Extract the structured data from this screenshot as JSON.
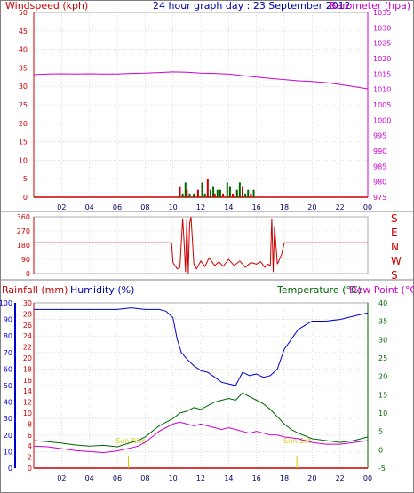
{
  "header": {
    "left": "Windspeed (kph)",
    "center": "24 hour graph day : 23 September 2012",
    "right": "Barometer (hpa)"
  },
  "lower_header": {
    "rainfall": "Rainfall (mm)",
    "humidity": "Humidity (%)",
    "temperature": "Temperature (°C)",
    "dewpoint": "Dew Point (°C)"
  },
  "annotations": {
    "sun_rise": "Sun Rise",
    "sun_set": "Sun Set"
  },
  "colors": {
    "windspeed": "#cc0000",
    "barometer": "#cc00cc",
    "direction": "#cc0000",
    "rainfall": "#cc0000",
    "humidity": "#0000cc",
    "temperature": "#006600",
    "dewpoint": "#cc00cc",
    "gust": "#006600",
    "sun": "#cccc00"
  },
  "chart_data": [
    {
      "type": "line",
      "title": "24 hour graph day : 23 September 2012",
      "ylabel": "Windspeed (kph)",
      "y2label": "Barometer (hpa)",
      "x_ticks": [
        "02",
        "04",
        "06",
        "08",
        "10",
        "12",
        "14",
        "16",
        "18",
        "20",
        "22",
        "00"
      ],
      "x_range": [
        0,
        24
      ],
      "ylim": [
        0,
        50
      ],
      "y_ticks": [
        0,
        5,
        10,
        15,
        20,
        25,
        30,
        35,
        40,
        45,
        50
      ],
      "y2lim": [
        975,
        1035
      ],
      "y2_ticks": [
        975,
        980,
        985,
        990,
        995,
        1000,
        1005,
        1010,
        1015,
        1020,
        1025,
        1030,
        1035
      ],
      "series": [
        {
          "name": "Barometer (hpa)",
          "axis": "right",
          "x": [
            0,
            1,
            2,
            3,
            4,
            5,
            6,
            7,
            8,
            9,
            10,
            11,
            12,
            13,
            14,
            15,
            16,
            17,
            18,
            19,
            20,
            21,
            22,
            23,
            24
          ],
          "values": [
            1014.8,
            1015.0,
            1015.1,
            1015.0,
            1015.1,
            1015.0,
            1015.0,
            1015.2,
            1015.3,
            1015.5,
            1015.7,
            1015.6,
            1015.3,
            1015.2,
            1015.0,
            1014.5,
            1014.0,
            1013.6,
            1013.2,
            1012.8,
            1012.6,
            1012.2,
            1011.6,
            1010.9,
            1010.2
          ]
        },
        {
          "name": "Windspeed (kph)",
          "axis": "left",
          "x": [
            0,
            10,
            24
          ],
          "values": [
            0,
            0,
            0
          ]
        }
      ],
      "gust_bars": {
        "x": [
          10.5,
          10.7,
          10.9,
          11.0,
          11.2,
          11.5,
          11.8,
          12.1,
          12.3,
          12.5,
          12.7,
          12.9,
          13.0,
          13.2,
          13.4,
          13.6,
          13.9,
          14.1,
          14.3,
          14.6,
          14.8,
          15.0,
          15.2,
          15.4,
          15.6,
          15.8
        ],
        "values": [
          3,
          1,
          4,
          2,
          1,
          1,
          2,
          4,
          1,
          5,
          2,
          3,
          1,
          2,
          2,
          1,
          4,
          3,
          1,
          2,
          4,
          3,
          1,
          2,
          1,
          2
        ]
      }
    },
    {
      "type": "line",
      "title": "",
      "ylabel": "",
      "y2label": "",
      "x_range": [
        0,
        24
      ],
      "ylim": [
        0,
        360
      ],
      "y_ticks": [
        0,
        90,
        180,
        270,
        360
      ],
      "direction_labels": [
        "S",
        "E",
        "N",
        "W",
        "S"
      ],
      "series": [
        {
          "name": "Wind direction",
          "x": [
            0,
            9.9,
            10.0,
            10.3,
            10.5,
            10.7,
            10.8,
            10.9,
            11.0,
            11.1,
            11.2,
            11.3,
            11.5,
            11.7,
            12.0,
            12.3,
            12.6,
            13.0,
            13.3,
            13.6,
            14.0,
            14.4,
            14.8,
            15.2,
            15.6,
            16.0,
            16.3,
            16.6,
            16.8,
            17.0,
            17.1,
            17.2,
            17.3,
            17.5,
            17.8,
            18.0,
            18.3,
            24
          ],
          "values": [
            195,
            195,
            70,
            30,
            40,
            350,
            200,
            10,
            350,
            0,
            320,
            360,
            60,
            30,
            80,
            45,
            100,
            50,
            75,
            45,
            90,
            50,
            80,
            40,
            70,
            60,
            75,
            40,
            60,
            50,
            350,
            10,
            300,
            60,
            120,
            195,
            195,
            195
          ]
        }
      ]
    },
    {
      "type": "line",
      "title": "",
      "ylabel": "Rainfall (mm)",
      "y2label": "Temperature (°C)",
      "x_range": [
        0,
        24
      ],
      "ylim": [
        0,
        100
      ],
      "y_ticks": [
        0,
        10,
        20,
        30,
        40,
        50,
        60,
        70,
        80,
        90,
        100
      ],
      "y_mid_ticks": [
        0,
        2,
        4,
        6,
        8,
        10,
        12,
        14,
        16,
        18,
        20,
        22,
        24,
        26,
        28,
        30
      ],
      "y2lim": [
        -5,
        40
      ],
      "y2_ticks": [
        -5,
        0,
        5,
        10,
        15,
        20,
        25,
        30,
        35,
        40
      ],
      "series": [
        {
          "name": "Humidity (%)",
          "axis": "left",
          "x": [
            0,
            2,
            4,
            6,
            7,
            8,
            9,
            9.5,
            10.0,
            10.3,
            10.6,
            11.0,
            11.5,
            12,
            12.5,
            13,
            13.5,
            14,
            14.5,
            15,
            15.5,
            16,
            16.5,
            17,
            17.5,
            18,
            19,
            20,
            21,
            22,
            23,
            23.5,
            24
          ],
          "values": [
            96,
            96,
            96,
            96,
            97,
            96,
            96,
            95,
            91,
            78,
            70,
            66,
            62,
            59,
            58,
            55,
            52,
            51,
            50,
            58,
            56,
            57,
            55,
            56,
            60,
            72,
            84,
            89,
            89,
            90,
            92,
            93,
            94
          ]
        },
        {
          "name": "Temperature (°C)",
          "axis": "right",
          "x": [
            0,
            1,
            2,
            3,
            4,
            5,
            6,
            7,
            7.5,
            8,
            8.5,
            9,
            9.5,
            10,
            10.5,
            11,
            11.5,
            12,
            12.5,
            13,
            13.5,
            14,
            14.5,
            15,
            15.5,
            16,
            16.5,
            17,
            17.5,
            18,
            18.5,
            19,
            20,
            21,
            22,
            23,
            24
          ],
          "values": [
            2.5,
            2.2,
            1.8,
            1.3,
            1.0,
            1.2,
            0.8,
            2.0,
            2.5,
            3.5,
            5.0,
            6.5,
            7.5,
            8.5,
            10.0,
            10.5,
            11.5,
            11.0,
            12.0,
            13.0,
            13.5,
            14.0,
            13.5,
            15.5,
            14.5,
            13.5,
            12.5,
            11.0,
            9.0,
            7.0,
            5.5,
            4.5,
            3.0,
            2.5,
            2.0,
            2.5,
            3.5
          ]
        },
        {
          "name": "Dew Point (°C)",
          "axis": "right",
          "x": [
            0,
            1,
            2,
            3,
            4,
            5,
            6,
            7,
            7.5,
            8,
            8.5,
            9,
            9.5,
            10,
            10.5,
            11,
            11.5,
            12,
            12.5,
            13,
            13.5,
            14,
            14.5,
            15,
            15.5,
            16,
            16.5,
            17,
            17.5,
            18,
            19,
            20,
            21,
            22,
            23,
            24
          ],
          "values": [
            1.0,
            0.8,
            0.3,
            -0.2,
            -0.5,
            -0.8,
            -0.3,
            0.5,
            1.0,
            2.0,
            3.5,
            5.0,
            6.0,
            7.0,
            7.5,
            7.0,
            6.5,
            7.0,
            6.5,
            6.0,
            5.5,
            6.0,
            5.5,
            5.0,
            4.5,
            5.0,
            4.5,
            4.0,
            4.0,
            3.5,
            3.0,
            2.0,
            1.5,
            1.5,
            2.0,
            2.5
          ]
        },
        {
          "name": "Rainfall (mm)",
          "axis": "left",
          "x": [
            0,
            24
          ],
          "values": [
            0,
            0
          ]
        }
      ],
      "sun_rise_hour": 6.8,
      "sun_set_hour": 18.9
    }
  ]
}
